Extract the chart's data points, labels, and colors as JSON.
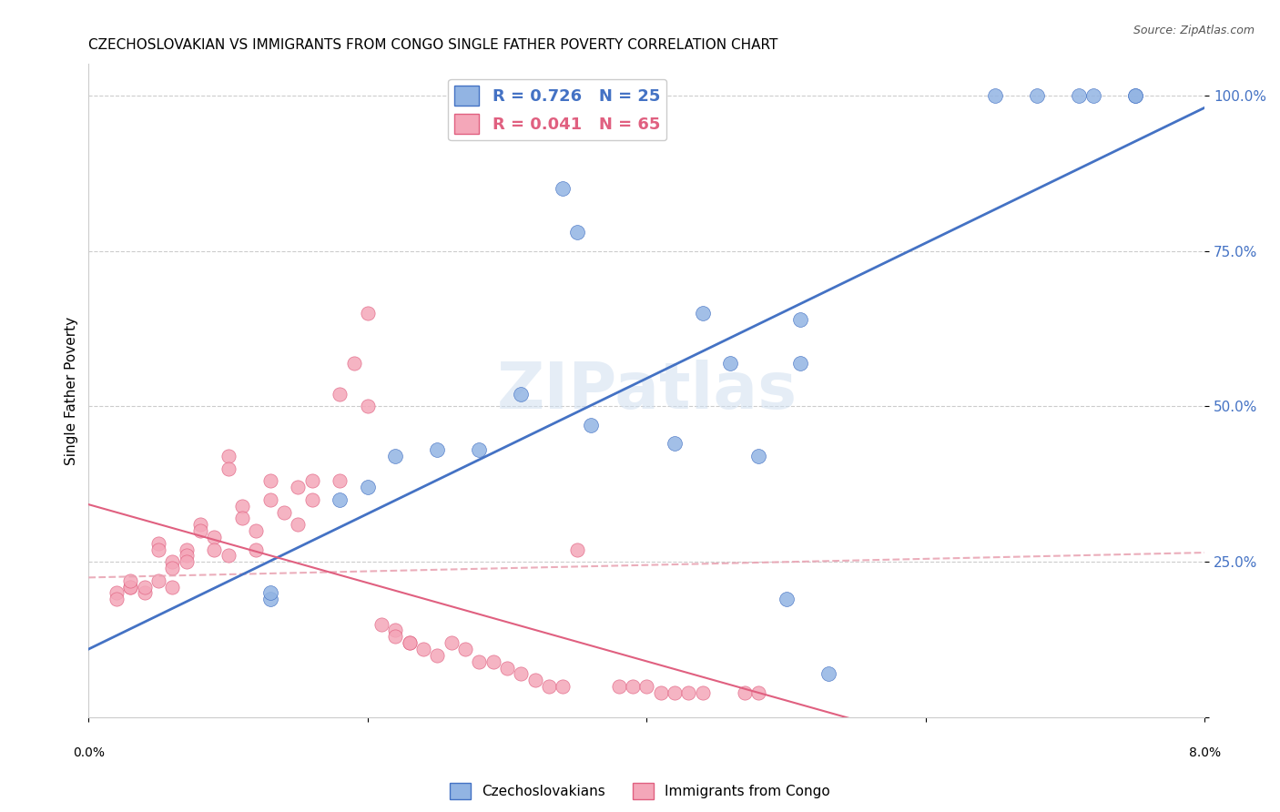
{
  "title": "CZECHOSLOVAKIAN VS IMMIGRANTS FROM CONGO SINGLE FATHER POVERTY CORRELATION CHART",
  "source": "Source: ZipAtlas.com",
  "ylabel": "Single Father Poverty",
  "xmin": 0.0,
  "xmax": 0.08,
  "ymin": 0.0,
  "ymax": 1.05,
  "blue_R": 0.726,
  "blue_N": 25,
  "pink_R": 0.041,
  "pink_N": 65,
  "blue_color": "#92b4e3",
  "blue_line_color": "#4472c4",
  "pink_color": "#f4a7b9",
  "pink_line_color": "#e06080",
  "pink_dashed_color": "#e8a0b0",
  "watermark": "ZIPatlas",
  "blue_scatter_x": [
    0.034,
    0.035,
    0.044,
    0.046,
    0.051,
    0.051,
    0.013,
    0.013,
    0.018,
    0.02,
    0.022,
    0.025,
    0.028,
    0.031,
    0.036,
    0.042,
    0.048,
    0.065,
    0.068,
    0.071,
    0.072,
    0.075,
    0.075,
    0.05,
    0.053
  ],
  "blue_scatter_y": [
    0.85,
    0.78,
    0.65,
    0.57,
    0.64,
    0.57,
    0.19,
    0.2,
    0.35,
    0.37,
    0.42,
    0.43,
    0.43,
    0.52,
    0.47,
    0.44,
    0.42,
    1.0,
    1.0,
    1.0,
    1.0,
    1.0,
    1.0,
    0.19,
    0.07
  ],
  "pink_scatter_x": [
    0.002,
    0.002,
    0.003,
    0.003,
    0.003,
    0.004,
    0.004,
    0.005,
    0.005,
    0.005,
    0.006,
    0.006,
    0.006,
    0.007,
    0.007,
    0.007,
    0.008,
    0.008,
    0.009,
    0.009,
    0.01,
    0.01,
    0.01,
    0.011,
    0.011,
    0.012,
    0.012,
    0.013,
    0.013,
    0.014,
    0.015,
    0.015,
    0.016,
    0.016,
    0.018,
    0.018,
    0.019,
    0.02,
    0.02,
    0.021,
    0.022,
    0.022,
    0.023,
    0.023,
    0.024,
    0.025,
    0.026,
    0.027,
    0.028,
    0.029,
    0.03,
    0.031,
    0.032,
    0.033,
    0.034,
    0.035,
    0.038,
    0.039,
    0.04,
    0.041,
    0.042,
    0.043,
    0.044,
    0.047,
    0.048
  ],
  "pink_scatter_y": [
    0.2,
    0.19,
    0.21,
    0.21,
    0.22,
    0.2,
    0.21,
    0.28,
    0.27,
    0.22,
    0.25,
    0.24,
    0.21,
    0.27,
    0.26,
    0.25,
    0.31,
    0.3,
    0.29,
    0.27,
    0.42,
    0.4,
    0.26,
    0.34,
    0.32,
    0.3,
    0.27,
    0.38,
    0.35,
    0.33,
    0.37,
    0.31,
    0.38,
    0.35,
    0.52,
    0.38,
    0.57,
    0.65,
    0.5,
    0.15,
    0.14,
    0.13,
    0.12,
    0.12,
    0.11,
    0.1,
    0.12,
    0.11,
    0.09,
    0.09,
    0.08,
    0.07,
    0.06,
    0.05,
    0.05,
    0.27,
    0.05,
    0.05,
    0.05,
    0.04,
    0.04,
    0.04,
    0.04,
    0.04,
    0.04
  ]
}
